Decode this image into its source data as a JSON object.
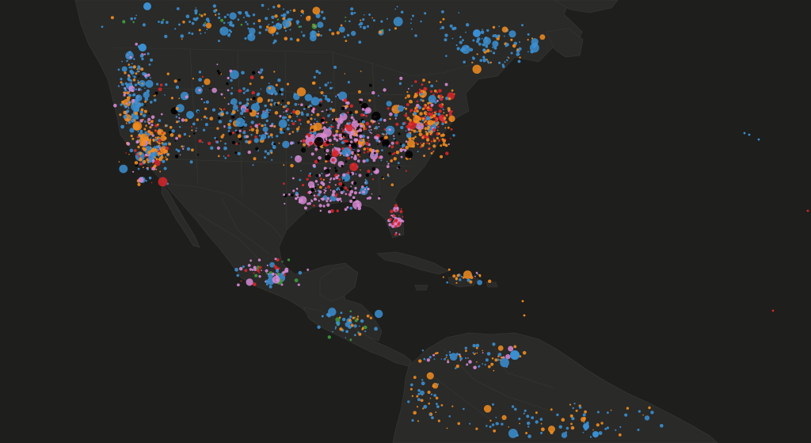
{
  "map": {
    "basemap": "dark-gray-canvas",
    "colors": {
      "ocean": "#1e1e1c",
      "land": "#2a2a28",
      "border": "#383835"
    },
    "point_categories": [
      {
        "key": "blue",
        "color": "#3b8fd1"
      },
      {
        "key": "orange",
        "color": "#f28c1e"
      },
      {
        "key": "pink",
        "color": "#d68ad4"
      },
      {
        "key": "red",
        "color": "#d9262a"
      },
      {
        "key": "black",
        "color": "#000000"
      },
      {
        "key": "green",
        "color": "#3b9c3b"
      },
      {
        "key": "darkblue",
        "color": "#1a1ad9"
      }
    ]
  }
}
